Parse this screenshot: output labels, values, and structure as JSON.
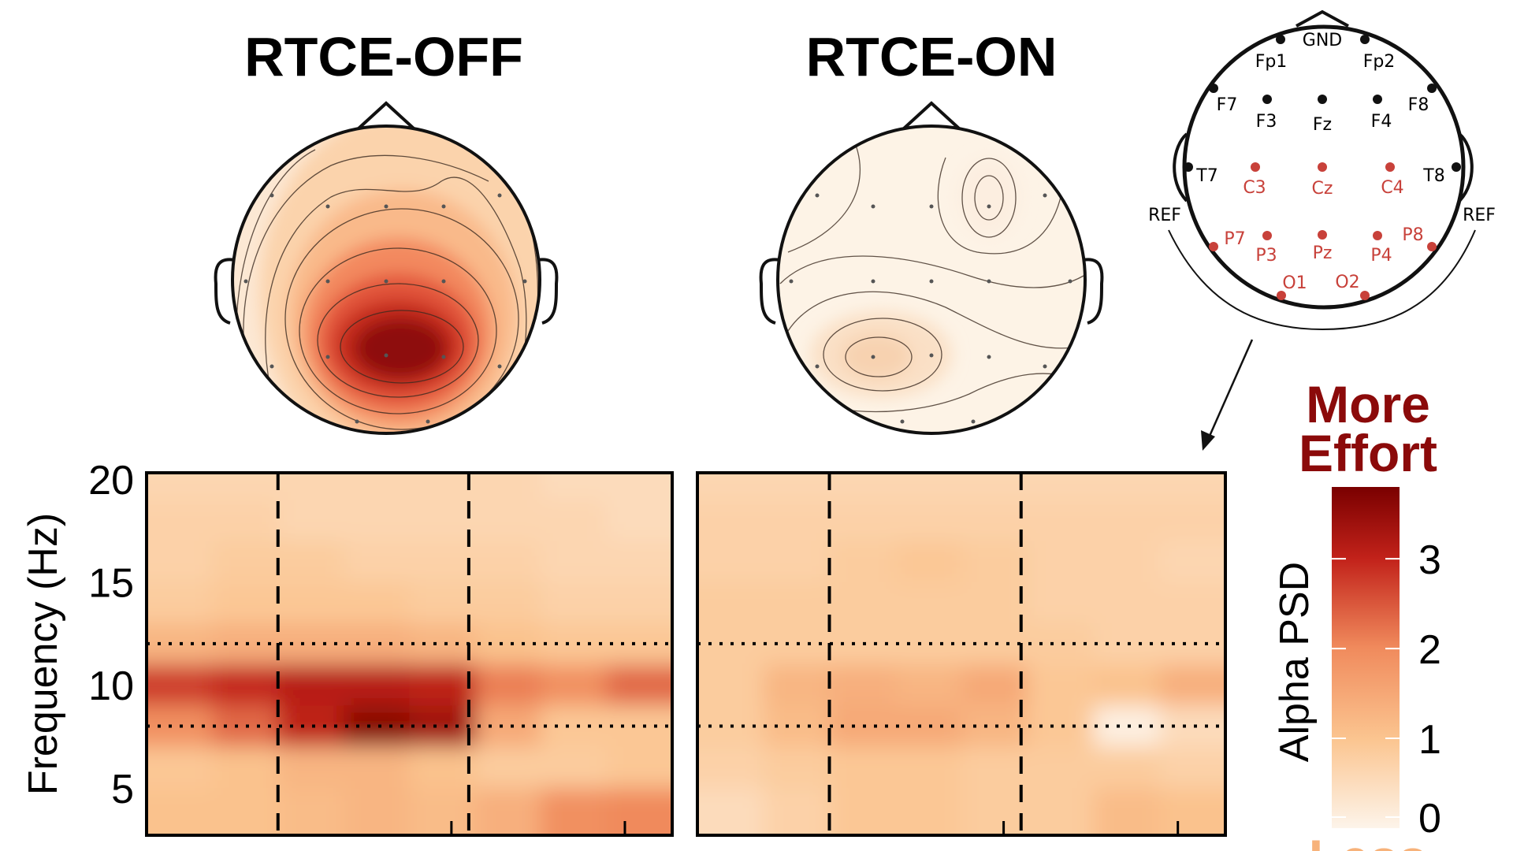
{
  "titles": {
    "off": "RTCE-OFF",
    "on": "RTCE-ON"
  },
  "montage": {
    "black_electrodes": [
      "Fp1",
      "Fp2",
      "F7",
      "F3",
      "Fz",
      "F4",
      "F8",
      "T7",
      "T8"
    ],
    "red_electrodes": [
      "C3",
      "Cz",
      "C4",
      "P7",
      "P3",
      "Pz",
      "P4",
      "P8",
      "O1",
      "O2"
    ],
    "labels": {
      "gnd": "GND",
      "ref_left": "REF",
      "ref_right": "REF",
      "Fp1": "Fp1",
      "Fp2": "Fp2",
      "F7": "F7",
      "F3": "F3",
      "Fz": "Fz",
      "F4": "F4",
      "F8": "F8",
      "T7": "T7",
      "T8": "T8",
      "C3": "C3",
      "Cz": "Cz",
      "C4": "C4",
      "P7": "P7",
      "P3": "P3",
      "Pz": "Pz",
      "P4": "P4",
      "P8": "P8",
      "O1": "O1",
      "O2": "O2"
    },
    "colors": {
      "black": "#111111",
      "red": "#c8413a"
    }
  },
  "colorbar": {
    "label": "Alpha PSD",
    "top_label_1": "More",
    "top_label_2": "Effort",
    "bottom_label": "Less",
    "top_color": "#8b0a0a",
    "bottom_color": "#f7b27a",
    "ticks": [
      "0",
      "1",
      "2",
      "3"
    ],
    "range": [
      0,
      3.8
    ],
    "colormap": [
      "#fdf4ea",
      "#fbc590",
      "#f08a5c",
      "#c2221a",
      "#7a0000"
    ]
  },
  "chart_data": [
    {
      "type": "heatmap",
      "panel": "RTCE-OFF",
      "ylabel": "Frequency (Hz)",
      "ylim": [
        2.7,
        20.3
      ],
      "yticks": [
        "5",
        "10",
        "15",
        "20"
      ],
      "freqs": [
        20,
        18,
        16,
        14,
        12,
        10,
        8,
        6,
        4
      ],
      "time_bins": 8,
      "dashed_vertical_at_bin": [
        2,
        5
      ],
      "dotted_horizontal_hz": [
        12,
        8
      ],
      "values": [
        [
          0.6,
          0.6,
          0.6,
          0.6,
          0.6,
          0.6,
          0.5,
          0.5
        ],
        [
          0.7,
          0.7,
          0.6,
          0.6,
          0.6,
          0.6,
          0.6,
          0.5
        ],
        [
          0.7,
          0.8,
          0.8,
          0.7,
          0.7,
          0.7,
          0.6,
          0.6
        ],
        [
          0.8,
          0.9,
          0.9,
          0.9,
          0.8,
          0.8,
          0.7,
          0.7
        ],
        [
          1.2,
          1.3,
          1.3,
          1.3,
          1.2,
          1.0,
          0.9,
          0.9
        ],
        [
          2.6,
          2.8,
          3.0,
          3.0,
          2.9,
          2.0,
          1.8,
          2.2
        ],
        [
          1.8,
          2.2,
          2.9,
          3.6,
          3.3,
          1.4,
          0.9,
          0.9
        ],
        [
          0.9,
          1.0,
          1.2,
          1.2,
          1.0,
          0.8,
          0.8,
          0.9
        ],
        [
          1.0,
          1.0,
          1.1,
          1.2,
          1.1,
          1.3,
          1.8,
          1.9
        ]
      ]
    },
    {
      "type": "heatmap",
      "panel": "RTCE-ON",
      "ylim": [
        2.7,
        20.3
      ],
      "freqs": [
        20,
        18,
        16,
        14,
        12,
        10,
        8,
        6,
        4
      ],
      "time_bins": 8,
      "dashed_vertical_at_bin": [
        2,
        5
      ],
      "dotted_horizontal_hz": [
        12,
        8
      ],
      "values": [
        [
          0.6,
          0.6,
          0.6,
          0.6,
          0.6,
          0.6,
          0.6,
          0.6
        ],
        [
          0.7,
          0.7,
          0.7,
          0.7,
          0.7,
          0.7,
          0.7,
          0.7
        ],
        [
          0.7,
          0.7,
          0.8,
          0.9,
          0.8,
          0.7,
          0.7,
          0.6
        ],
        [
          0.8,
          0.8,
          0.8,
          0.8,
          0.8,
          0.7,
          0.7,
          0.7
        ],
        [
          0.8,
          0.8,
          0.8,
          0.8,
          0.8,
          0.8,
          0.7,
          0.7
        ],
        [
          0.8,
          1.2,
          1.3,
          1.2,
          1.4,
          0.9,
          1.0,
          1.3
        ],
        [
          0.8,
          1.1,
          1.4,
          1.4,
          1.2,
          0.9,
          0.1,
          0.5
        ],
        [
          0.7,
          0.8,
          0.9,
          0.9,
          0.8,
          0.8,
          0.8,
          0.7
        ],
        [
          0.5,
          0.7,
          0.9,
          0.9,
          0.8,
          0.8,
          1.1,
          1.0
        ]
      ]
    }
  ]
}
